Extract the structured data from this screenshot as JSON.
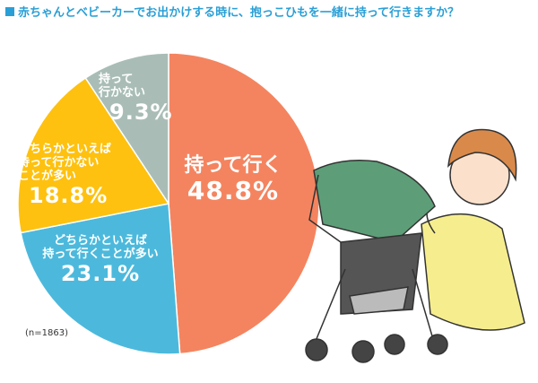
{
  "chart_data": {
    "type": "pie",
    "title": "赤ちゃんとベビーカーでお出かけする時に、抱っこひもを一緒に持って行きますか？",
    "categories": [
      "持って行く",
      "どちらかといえば\n持って行くことが多い",
      "どちらかといえば\n持って行かない\nことが多い",
      "持って\n行かない"
    ],
    "values": [
      48.8,
      23.1,
      18.8,
      9.3
    ],
    "value_labels": [
      "48.8%",
      "23.1%",
      "18.8%",
      "9.3%"
    ],
    "colors": [
      "#f4845f",
      "#4cb9dc",
      "#fec10f",
      "#a9bdb6"
    ],
    "note": "(n=1863)"
  }
}
